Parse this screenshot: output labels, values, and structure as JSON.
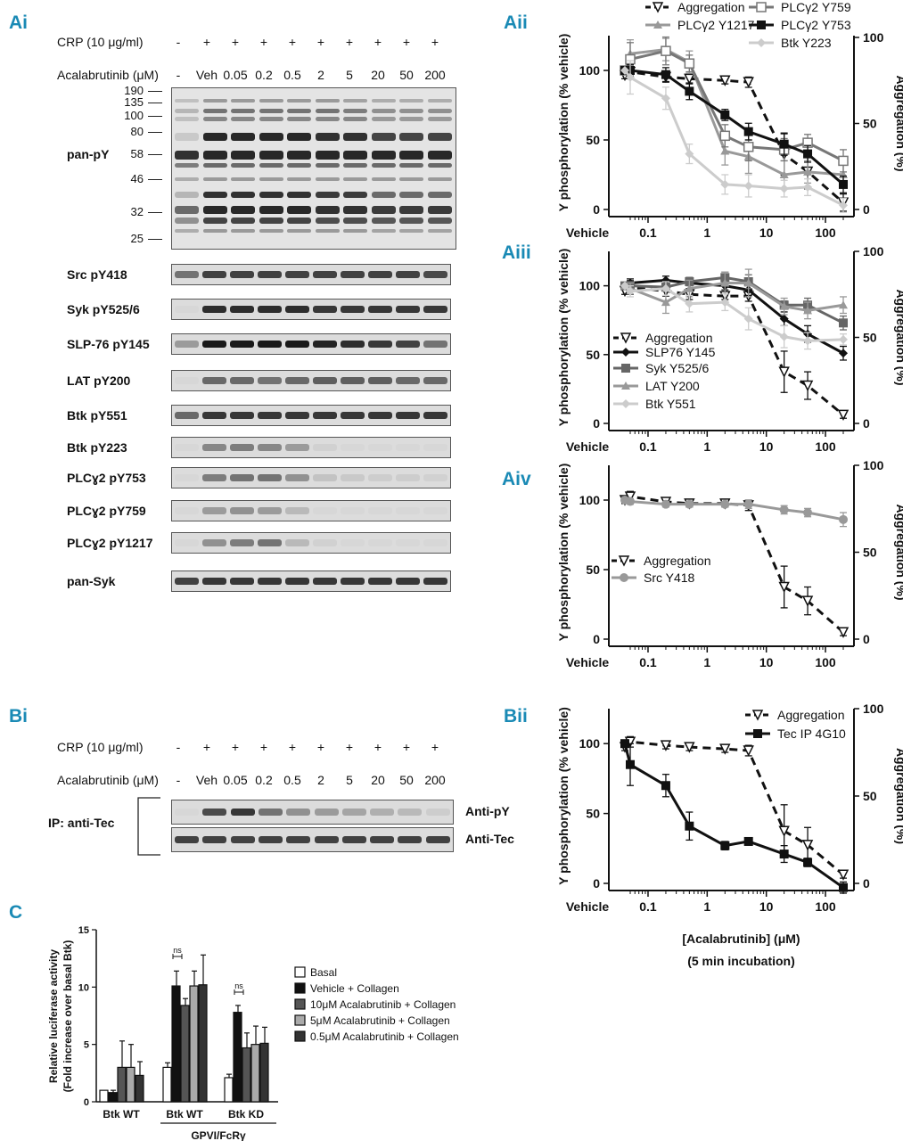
{
  "panels": {
    "ai": "Ai",
    "aii": "Aii",
    "aiii": "Aiii",
    "aiv": "Aiv",
    "bi": "Bi",
    "bii": "Bii",
    "c": "C"
  },
  "header": {
    "crp_label": "CRP (10 μg/ml)",
    "crp_signs": [
      "-",
      "+",
      "+",
      "+",
      "+",
      "+",
      "+",
      "+",
      "+",
      "+"
    ],
    "acala_label": "Acalabrutinib (μM)",
    "acala_doses": [
      "-",
      "Veh",
      "0.05",
      "0.2",
      "0.5",
      "2",
      "5",
      "20",
      "50",
      "200"
    ]
  },
  "blot_ai": {
    "mw_markers": [
      "190",
      "135",
      "100",
      "80",
      "58",
      "46",
      "32",
      "25"
    ],
    "pan_py_label": "pan-pY",
    "rows": [
      {
        "label": "Src pY418",
        "intensity": [
          0.55,
          0.8,
          0.8,
          0.8,
          0.8,
          0.8,
          0.8,
          0.8,
          0.8,
          0.75
        ]
      },
      {
        "label": "Syk pY525/6",
        "intensity": [
          0.05,
          0.9,
          0.9,
          0.9,
          0.9,
          0.85,
          0.85,
          0.85,
          0.85,
          0.85
        ]
      },
      {
        "label": "SLP-76 pY145",
        "intensity": [
          0.35,
          1.0,
          1.0,
          1.0,
          1.0,
          0.95,
          0.9,
          0.85,
          0.8,
          0.55
        ]
      },
      {
        "label": "LAT pY200",
        "intensity": [
          0.05,
          0.6,
          0.6,
          0.55,
          0.6,
          0.65,
          0.65,
          0.65,
          0.6,
          0.6
        ]
      },
      {
        "label": "Btk pY551",
        "intensity": [
          0.6,
          0.85,
          0.85,
          0.85,
          0.85,
          0.85,
          0.85,
          0.85,
          0.85,
          0.85
        ]
      },
      {
        "label": "Btk pY223",
        "intensity": [
          0.05,
          0.45,
          0.5,
          0.45,
          0.35,
          0.08,
          0.05,
          0.05,
          0.05,
          0.05
        ]
      },
      {
        "label": "PLCɣ2 pY753",
        "intensity": [
          0.05,
          0.5,
          0.55,
          0.55,
          0.4,
          0.15,
          0.12,
          0.1,
          0.1,
          0.08
        ]
      },
      {
        "label": "PLCɣ2 pY759",
        "intensity": [
          0.05,
          0.35,
          0.4,
          0.35,
          0.2,
          0.05,
          0.05,
          0.05,
          0.05,
          0.05
        ]
      },
      {
        "label": "PLCɣ2 pY1217",
        "intensity": [
          0.05,
          0.4,
          0.5,
          0.55,
          0.2,
          0.08,
          0.05,
          0.05,
          0.05,
          0.05
        ]
      },
      {
        "label": "pan-Syk",
        "intensity": [
          0.8,
          0.85,
          0.85,
          0.85,
          0.85,
          0.85,
          0.85,
          0.85,
          0.85,
          0.85
        ]
      }
    ]
  },
  "blot_bi": {
    "ip_label": "IP: anti-Tec",
    "rows": [
      {
        "label": "Anti-pY",
        "intensity": [
          0.05,
          0.75,
          0.85,
          0.55,
          0.4,
          0.35,
          0.3,
          0.25,
          0.2,
          0.1
        ]
      },
      {
        "label": "Anti-Tec",
        "intensity": [
          0.8,
          0.8,
          0.8,
          0.8,
          0.8,
          0.8,
          0.8,
          0.8,
          0.8,
          0.8
        ]
      }
    ]
  },
  "axis_common": {
    "ylabel_left": "Y phosphorylation (% vehicle)",
    "ylabel_right": "Aggregation (%)",
    "yticks_left": [
      "0",
      "50",
      "100"
    ],
    "yticks_right": [
      "0",
      "50",
      "100"
    ],
    "xticks": [
      "Vehicle",
      "0.1",
      "1",
      "10",
      "100"
    ],
    "xlabel": "[Acalabrutinib] (μM)",
    "xlabel2": "(5 min incubation)"
  },
  "chart_data": [
    {
      "id": "Aii",
      "type": "line",
      "xscale": "log",
      "ylim": [
        0,
        125
      ],
      "y2lim": [
        0,
        100
      ],
      "x": [
        0.025,
        0.05,
        0.2,
        0.5,
        2,
        5,
        20,
        50,
        200
      ],
      "series": [
        {
          "name": "Aggregation",
          "axis": "right",
          "style": "dashed",
          "marker": "tri-open",
          "color": "#111",
          "values": [
            78,
            80,
            77,
            76,
            75,
            74,
            32,
            22,
            4
          ],
          "err": [
            2,
            4,
            3,
            3,
            2,
            3,
            12,
            10,
            5
          ]
        },
        {
          "name": "PLCγ2 Y1217",
          "axis": "left",
          "style": "solid",
          "marker": "tri",
          "color": "#999",
          "values": [
            100,
            112,
            115,
            106,
            42,
            38,
            25,
            27,
            25
          ],
          "err": [
            0,
            10,
            8,
            8,
            10,
            12,
            10,
            8,
            8
          ]
        },
        {
          "name": "PLCγ2 Y759",
          "axis": "left",
          "style": "solid",
          "marker": "sq-open",
          "color": "#777",
          "values": [
            100,
            108,
            114,
            105,
            53,
            45,
            43,
            48,
            35
          ],
          "err": [
            0,
            12,
            10,
            6,
            8,
            10,
            8,
            6,
            8
          ]
        },
        {
          "name": "PLCγ2 Y753",
          "axis": "left",
          "style": "solid",
          "marker": "sq",
          "color": "#111",
          "values": [
            100,
            100,
            97,
            85,
            68,
            56,
            47,
            40,
            18
          ],
          "err": [
            0,
            4,
            5,
            6,
            4,
            6,
            8,
            6,
            6
          ]
        },
        {
          "name": "Btk Y223",
          "axis": "left",
          "style": "solid",
          "marker": "diamond",
          "color": "#ccc",
          "values": [
            100,
            95,
            80,
            40,
            18,
            17,
            15,
            16,
            3
          ],
          "err": [
            0,
            12,
            8,
            7,
            7,
            8,
            6,
            6,
            5
          ]
        }
      ]
    },
    {
      "id": "Aiii",
      "type": "line",
      "xscale": "log",
      "ylim": [
        0,
        125
      ],
      "y2lim": [
        0,
        100
      ],
      "x": [
        0.025,
        0.05,
        0.2,
        0.5,
        2,
        5,
        20,
        50,
        200
      ],
      "series": [
        {
          "name": "Aggregation",
          "axis": "right",
          "style": "dashed",
          "marker": "tri-open",
          "color": "#111",
          "values": [
            77,
            79,
            77,
            75,
            74,
            74,
            30,
            22,
            5
          ],
          "err": [
            2,
            4,
            3,
            3,
            2,
            3,
            12,
            8,
            2
          ]
        },
        {
          "name": "SLP76 Y145",
          "axis": "left",
          "style": "solid",
          "marker": "diamond",
          "color": "#111",
          "values": [
            100,
            102,
            104,
            102,
            100,
            97,
            76,
            65,
            51
          ],
          "err": [
            0,
            3,
            3,
            4,
            3,
            4,
            5,
            6,
            5
          ]
        },
        {
          "name": "Syk Y525/6",
          "axis": "left",
          "style": "solid",
          "marker": "sq",
          "color": "#666",
          "values": [
            100,
            100,
            99,
            103,
            106,
            103,
            86,
            86,
            73
          ],
          "err": [
            0,
            3,
            3,
            3,
            4,
            5,
            3,
            5,
            5
          ]
        },
        {
          "name": "LAT Y200",
          "axis": "left",
          "style": "solid",
          "marker": "tri",
          "color": "#999",
          "values": [
            100,
            98,
            88,
            98,
            102,
            102,
            85,
            82,
            86
          ],
          "err": [
            0,
            4,
            8,
            6,
            8,
            10,
            6,
            6,
            6
          ]
        },
        {
          "name": "Btk Y551",
          "axis": "left",
          "style": "solid",
          "marker": "diamond",
          "color": "#ccc",
          "values": [
            100,
            96,
            98,
            87,
            88,
            76,
            63,
            60,
            61
          ],
          "err": [
            0,
            4,
            5,
            6,
            6,
            8,
            8,
            6,
            4
          ]
        }
      ]
    },
    {
      "id": "Aiv",
      "type": "line",
      "xscale": "log",
      "ylim": [
        0,
        125
      ],
      "y2lim": [
        0,
        100
      ],
      "x": [
        0.025,
        0.05,
        0.2,
        0.5,
        2,
        5,
        20,
        50,
        200
      ],
      "series": [
        {
          "name": "Aggregation",
          "axis": "right",
          "style": "dashed",
          "marker": "tri-open",
          "color": "#111",
          "values": [
            80,
            82,
            79,
            78,
            78,
            77,
            30,
            22,
            4
          ],
          "err": [
            2,
            3,
            2,
            2,
            2,
            3,
            12,
            8,
            2
          ]
        },
        {
          "name": "Src Y418",
          "axis": "left",
          "style": "solid",
          "marker": "circle",
          "color": "#999",
          "values": [
            100,
            99,
            97,
            97,
            97,
            97,
            93,
            91,
            86
          ],
          "err": [
            0,
            2,
            2,
            2,
            2,
            3,
            3,
            3,
            5
          ]
        }
      ]
    },
    {
      "id": "Bii",
      "type": "line",
      "xscale": "log",
      "ylim": [
        0,
        125
      ],
      "y2lim": [
        0,
        100
      ],
      "x": [
        0.025,
        0.05,
        0.2,
        0.5,
        2,
        5,
        20,
        50,
        200
      ],
      "series": [
        {
          "name": "Aggregation",
          "axis": "right",
          "style": "dashed",
          "marker": "tri-open",
          "color": "#111",
          "values": [
            78,
            81,
            79,
            78,
            77,
            76,
            30,
            22,
            5
          ],
          "err": [
            2,
            3,
            2,
            2,
            2,
            3,
            15,
            10,
            2
          ]
        },
        {
          "name": "Tec IP 4G10",
          "axis": "left",
          "style": "solid",
          "marker": "sq",
          "color": "#111",
          "values": [
            100,
            85,
            70,
            41,
            27,
            30,
            21,
            15,
            -3
          ],
          "err": [
            0,
            15,
            8,
            10,
            3,
            2,
            6,
            3,
            4
          ]
        }
      ]
    },
    {
      "id": "C",
      "type": "bar",
      "ylabel": "Relative luciferase activity",
      "ylabel2": "(Fold increase over basal Btk)",
      "ylim": [
        0,
        15
      ],
      "yticks": [
        "0",
        "5",
        "10",
        "15"
      ],
      "groups": [
        "Btk WT",
        "Btk WT",
        "Btk KD"
      ],
      "group_super": "GPVI/FcRγ",
      "sig": [
        "ns",
        "ns"
      ],
      "series": [
        {
          "name": "Basal",
          "color": "#ffffff",
          "values": [
            1.0,
            3.0,
            2.1
          ],
          "err": [
            0,
            0.4,
            0.3
          ]
        },
        {
          "name": "Vehicle + Collagen",
          "color": "#111111",
          "values": [
            0.8,
            10.1,
            7.8
          ],
          "err": [
            0.2,
            1.3,
            0.6
          ]
        },
        {
          "name": "10μM Acalabrutinib + Collagen",
          "color": "#555555",
          "values": [
            3.0,
            8.4,
            4.7
          ],
          "err": [
            2.3,
            0.6,
            1.3
          ]
        },
        {
          "name": "5μM Acalabrutinib + Collagen",
          "color": "#aaaaaa",
          "values": [
            3.0,
            10.1,
            5.0
          ],
          "err": [
            2.0,
            1.3,
            1.6
          ]
        },
        {
          "name": "0.5μM Acalabrutinib + Collagen",
          "color": "#333333",
          "values": [
            2.3,
            10.2,
            5.1
          ],
          "err": [
            1.2,
            2.6,
            1.4
          ]
        }
      ]
    }
  ]
}
